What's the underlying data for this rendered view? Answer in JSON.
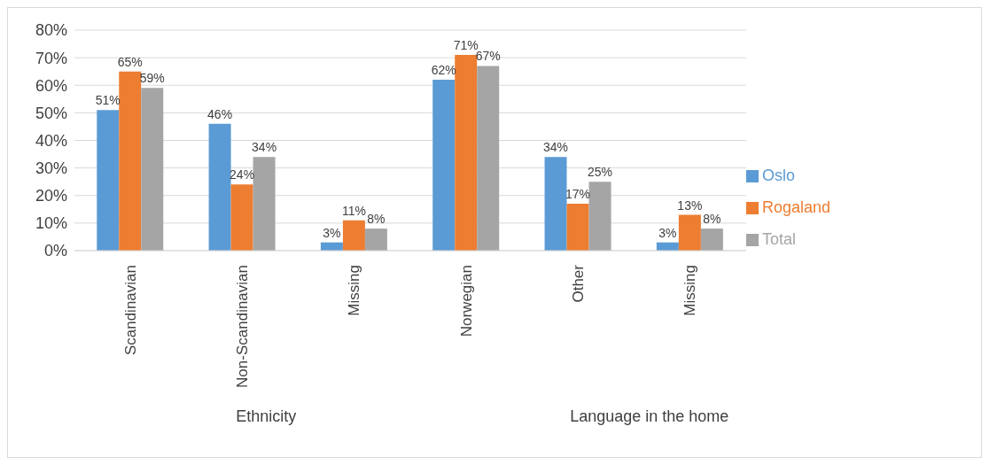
{
  "chart_data": {
    "type": "bar",
    "categories": [
      "Scandinavian",
      "Non-Scandinavian",
      "Missing",
      "Norwegian",
      "Other",
      "Missing"
    ],
    "series": [
      {
        "name": "Oslo",
        "color": "#5b9bd5",
        "values": [
          51,
          46,
          3,
          62,
          34,
          3
        ],
        "value_labels": [
          "51%",
          "46%",
          "3%",
          "62%",
          "34%",
          "3%"
        ]
      },
      {
        "name": "Rogaland",
        "color": "#ed7d31",
        "values": [
          65,
          24,
          11,
          71,
          17,
          13
        ],
        "value_labels": [
          "65%",
          "24%",
          "11%",
          "71%",
          "17%",
          "13%"
        ]
      },
      {
        "name": "Total",
        "color": "#a5a5a5",
        "values": [
          59,
          34,
          8,
          67,
          25,
          8
        ],
        "value_labels": [
          "59%",
          "34%",
          "8%",
          "67%",
          "25%",
          "8%"
        ]
      }
    ],
    "ylim": [
      0,
      80
    ],
    "yticks": [
      {
        "value": 0,
        "label": "0%"
      },
      {
        "value": 10,
        "label": "10%"
      },
      {
        "value": 20,
        "label": "20%"
      },
      {
        "value": 30,
        "label": "30%"
      },
      {
        "value": 40,
        "label": "40%"
      },
      {
        "value": 50,
        "label": "50%"
      },
      {
        "value": 60,
        "label": "60%"
      },
      {
        "value": 70,
        "label": "70%"
      },
      {
        "value": 80,
        "label": "80%"
      }
    ],
    "grid": "y",
    "legend": "right",
    "annotations": [
      "Ethnicity",
      "Language in the home"
    ]
  }
}
